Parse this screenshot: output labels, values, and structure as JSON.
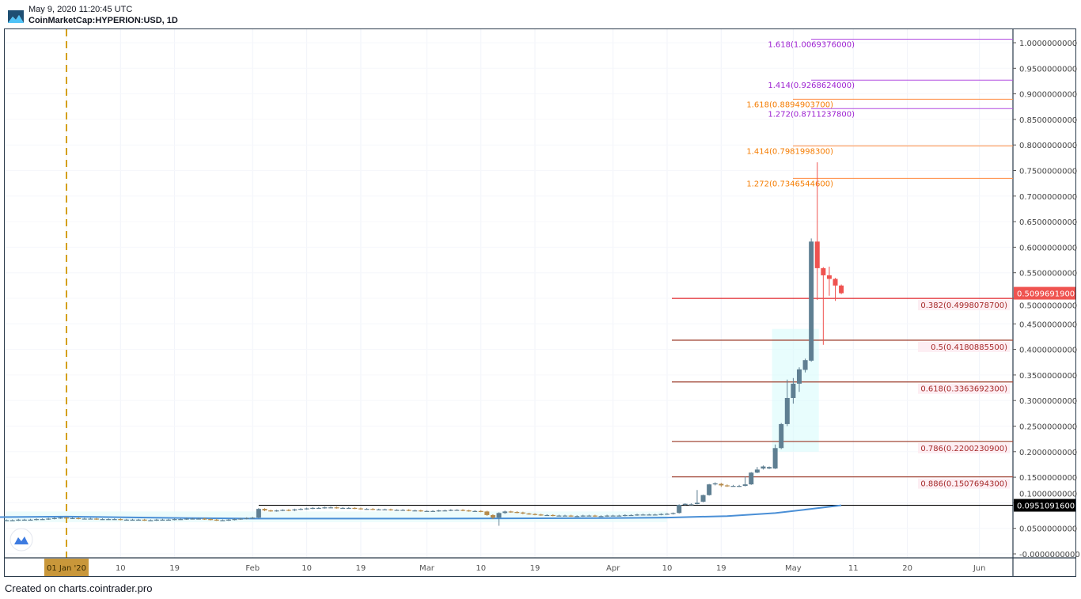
{
  "header": {
    "timestamp": "May 9, 2020 11:20:45 UTC",
    "symbol": "CoinMarketCap:HYPERION:USD, 1D"
  },
  "footer": {
    "text": "Created on charts.cointrader.pro"
  },
  "colors": {
    "up": "#5f7f92",
    "down": "#ef5350",
    "ma": "#4a8fd6",
    "retracement_main": "#e0262b",
    "retracement": "#a34a3a",
    "extension_orange": "#ff8a3d",
    "extension_purple": "#b04ae0",
    "last_price_bg": "#ef5350",
    "level_bg": "#000000",
    "date_marker": "#d4a017"
  },
  "chart_data": {
    "type": "candlestick",
    "title": "CoinMarketCap:HYPERION:USD, 1D",
    "ylim": [
      -0.01,
      1.03
    ],
    "y_ticks": [
      "1.0000000000",
      "0.9500000000",
      "0.9000000000",
      "0.8500000000",
      "0.8000000000",
      "0.7500000000",
      "0.7000000000",
      "0.6500000000",
      "0.6000000000",
      "0.5500000000",
      "0.5000000000",
      "0.4500000000",
      "0.4000000000",
      "0.3500000000",
      "0.3000000000",
      "0.2500000000",
      "0.2000000000",
      "0.1500000000",
      "0.1000000000",
      "0.0500000000",
      "-0.0000000000"
    ],
    "y_tick_values": [
      1.0,
      0.95,
      0.9,
      0.85,
      0.8,
      0.75,
      0.7,
      0.65,
      0.6,
      0.55,
      0.5,
      0.45,
      0.4,
      0.35,
      0.3,
      0.25,
      0.2,
      0.15,
      0.1,
      0.05,
      0.0
    ],
    "x_ticks": [
      {
        "label": "01 Jan '20",
        "day": 0,
        "highlight": true
      },
      {
        "label": "10",
        "day": 9
      },
      {
        "label": "19",
        "day": 18
      },
      {
        "label": "Feb",
        "day": 31
      },
      {
        "label": "10",
        "day": 40
      },
      {
        "label": "19",
        "day": 49
      },
      {
        "label": "Mar",
        "day": 60
      },
      {
        "label": "10",
        "day": 69
      },
      {
        "label": "19",
        "day": 78
      },
      {
        "label": "Apr",
        "day": 91
      },
      {
        "label": "10",
        "day": 100
      },
      {
        "label": "19",
        "day": 109
      },
      {
        "label": "May",
        "day": 121
      },
      {
        "label": "11",
        "day": 131
      },
      {
        "label": "20",
        "day": 140
      },
      {
        "label": "Jun",
        "day": 152
      }
    ],
    "day_zero": "2020-01-01",
    "early_candles": {
      "start_day": -10,
      "closes": [
        0.066,
        0.066,
        0.067,
        0.067,
        0.067,
        0.068,
        0.068,
        0.069,
        0.07,
        0.071,
        0.07,
        0.07,
        0.069,
        0.069,
        0.069,
        0.068,
        0.068,
        0.068,
        0.068,
        0.067,
        0.067,
        0.067,
        0.067,
        0.066,
        0.066,
        0.067,
        0.067,
        0.067,
        0.068,
        0.068,
        0.069,
        0.069,
        0.069,
        0.068,
        0.067,
        0.066,
        0.066,
        0.067,
        0.068,
        0.069,
        0.07,
        0.071,
        0.088,
        0.085,
        0.084,
        0.085,
        0.086,
        0.085,
        0.087,
        0.088,
        0.089,
        0.09,
        0.09,
        0.091,
        0.091,
        0.09,
        0.09,
        0.09,
        0.089,
        0.088,
        0.088,
        0.087,
        0.087,
        0.087,
        0.086,
        0.086,
        0.086,
        0.085,
        0.085,
        0.084,
        0.084,
        0.084,
        0.085,
        0.085,
        0.086,
        0.086,
        0.085,
        0.084,
        0.084,
        0.083,
        0.076,
        0.071,
        0.08,
        0.083,
        0.082,
        0.081,
        0.079,
        0.078,
        0.077,
        0.076,
        0.076,
        0.075,
        0.075,
        0.075,
        0.074,
        0.074,
        0.075,
        0.075,
        0.074,
        0.074,
        0.075,
        0.075,
        0.075,
        0.076,
        0.076,
        0.077,
        0.077,
        0.077,
        0.077,
        0.078,
        0.0785
      ],
      "low_overrides": {
        "72": 0.055,
        "71": 0.068
      }
    },
    "rally_candles": [
      [
        101,
        0.0785,
        0.081,
        0.077,
        0.08
      ],
      [
        102,
        0.08,
        0.097,
        0.079,
        0.096
      ],
      [
        103,
        0.096,
        0.099,
        0.095,
        0.098
      ],
      [
        104,
        0.097,
        0.099,
        0.096,
        0.097
      ],
      [
        105,
        0.0975,
        0.125,
        0.097,
        0.1
      ],
      [
        106,
        0.102,
        0.116,
        0.101,
        0.115
      ],
      [
        107,
        0.115,
        0.137,
        0.114,
        0.136
      ],
      [
        108,
        0.136,
        0.14,
        0.134,
        0.138
      ],
      [
        109,
        0.137,
        0.139,
        0.131,
        0.134
      ],
      [
        110,
        0.134,
        0.136,
        0.131,
        0.133
      ],
      [
        111,
        0.133,
        0.135,
        0.132,
        0.133
      ],
      [
        112,
        0.133,
        0.135,
        0.131,
        0.133
      ],
      [
        113,
        0.133,
        0.152,
        0.132,
        0.136
      ],
      [
        114,
        0.136,
        0.16,
        0.135,
        0.159
      ],
      [
        115,
        0.159,
        0.17,
        0.158,
        0.165
      ],
      [
        116,
        0.167,
        0.173,
        0.165,
        0.171
      ],
      [
        117,
        0.167,
        0.171,
        0.166,
        0.17
      ],
      [
        118,
        0.167,
        0.214,
        0.166,
        0.207
      ],
      [
        119,
        0.207,
        0.256,
        0.205,
        0.254
      ],
      [
        120,
        0.254,
        0.341,
        0.25,
        0.305
      ],
      [
        121,
        0.305,
        0.344,
        0.294,
        0.333
      ],
      [
        122,
        0.333,
        0.365,
        0.317,
        0.361
      ],
      [
        123,
        0.36,
        0.382,
        0.355,
        0.379
      ],
      [
        124,
        0.378,
        0.617,
        0.376,
        0.611
      ],
      [
        125,
        0.611,
        0.766,
        0.497,
        0.559
      ],
      [
        126,
        0.559,
        0.561,
        0.409,
        0.545
      ],
      [
        127,
        0.545,
        0.562,
        0.505,
        0.538
      ],
      [
        128,
        0.538,
        0.54,
        0.495,
        0.525
      ],
      [
        129,
        0.525,
        0.527,
        0.508,
        0.51
      ]
    ],
    "moving_average": [
      [
        -12,
        0.072
      ],
      [
        0,
        0.073
      ],
      [
        20,
        0.07
      ],
      [
        31,
        0.069
      ],
      [
        60,
        0.069
      ],
      [
        90,
        0.07
      ],
      [
        100,
        0.071
      ],
      [
        110,
        0.074
      ],
      [
        118,
        0.08
      ],
      [
        124,
        0.088
      ],
      [
        129,
        0.095
      ]
    ],
    "last_price": {
      "value": 0.50996919,
      "label": "0.5099691900"
    },
    "horizontal_level": {
      "value": 0.09510916,
      "label": "0.0951091600",
      "from_day": 32
    },
    "date_marker_day": 0,
    "fib_retracement": [
      {
        "ratio": "0.382",
        "value": 0.49980787,
        "label": "0.382(0.4998078700)",
        "main": true
      },
      {
        "ratio": "0.5",
        "value": 0.41808855,
        "label": "0.5(0.4180885500)"
      },
      {
        "ratio": "0.618",
        "value": 0.33636923,
        "label": "0.618(0.3363692300)"
      },
      {
        "ratio": "0.786",
        "value": 0.22002309,
        "label": "0.786(0.2200230900)"
      },
      {
        "ratio": "0.886",
        "value": 0.15076943,
        "label": "0.886(0.1507694300)"
      }
    ],
    "fib_extension_orange": [
      {
        "ratio": "1.272",
        "value": 0.73465446,
        "label": "1.272(0.7346544600)"
      },
      {
        "ratio": "1.414",
        "value": 0.79819983,
        "label": "1.414(0.7981998300)"
      },
      {
        "ratio": "1.618",
        "value": 0.88949037,
        "label": "1.618(0.8894903700)"
      }
    ],
    "fib_extension_purple": [
      {
        "ratio": "1.272",
        "value": 0.87112378,
        "label": "1.272(0.8711237800)"
      },
      {
        "ratio": "1.414",
        "value": 0.9268624,
        "label": "1.414(0.9268624000)"
      },
      {
        "ratio": "1.618",
        "value": 1.0069376,
        "label": "1.618(1.0069376000)"
      }
    ]
  }
}
